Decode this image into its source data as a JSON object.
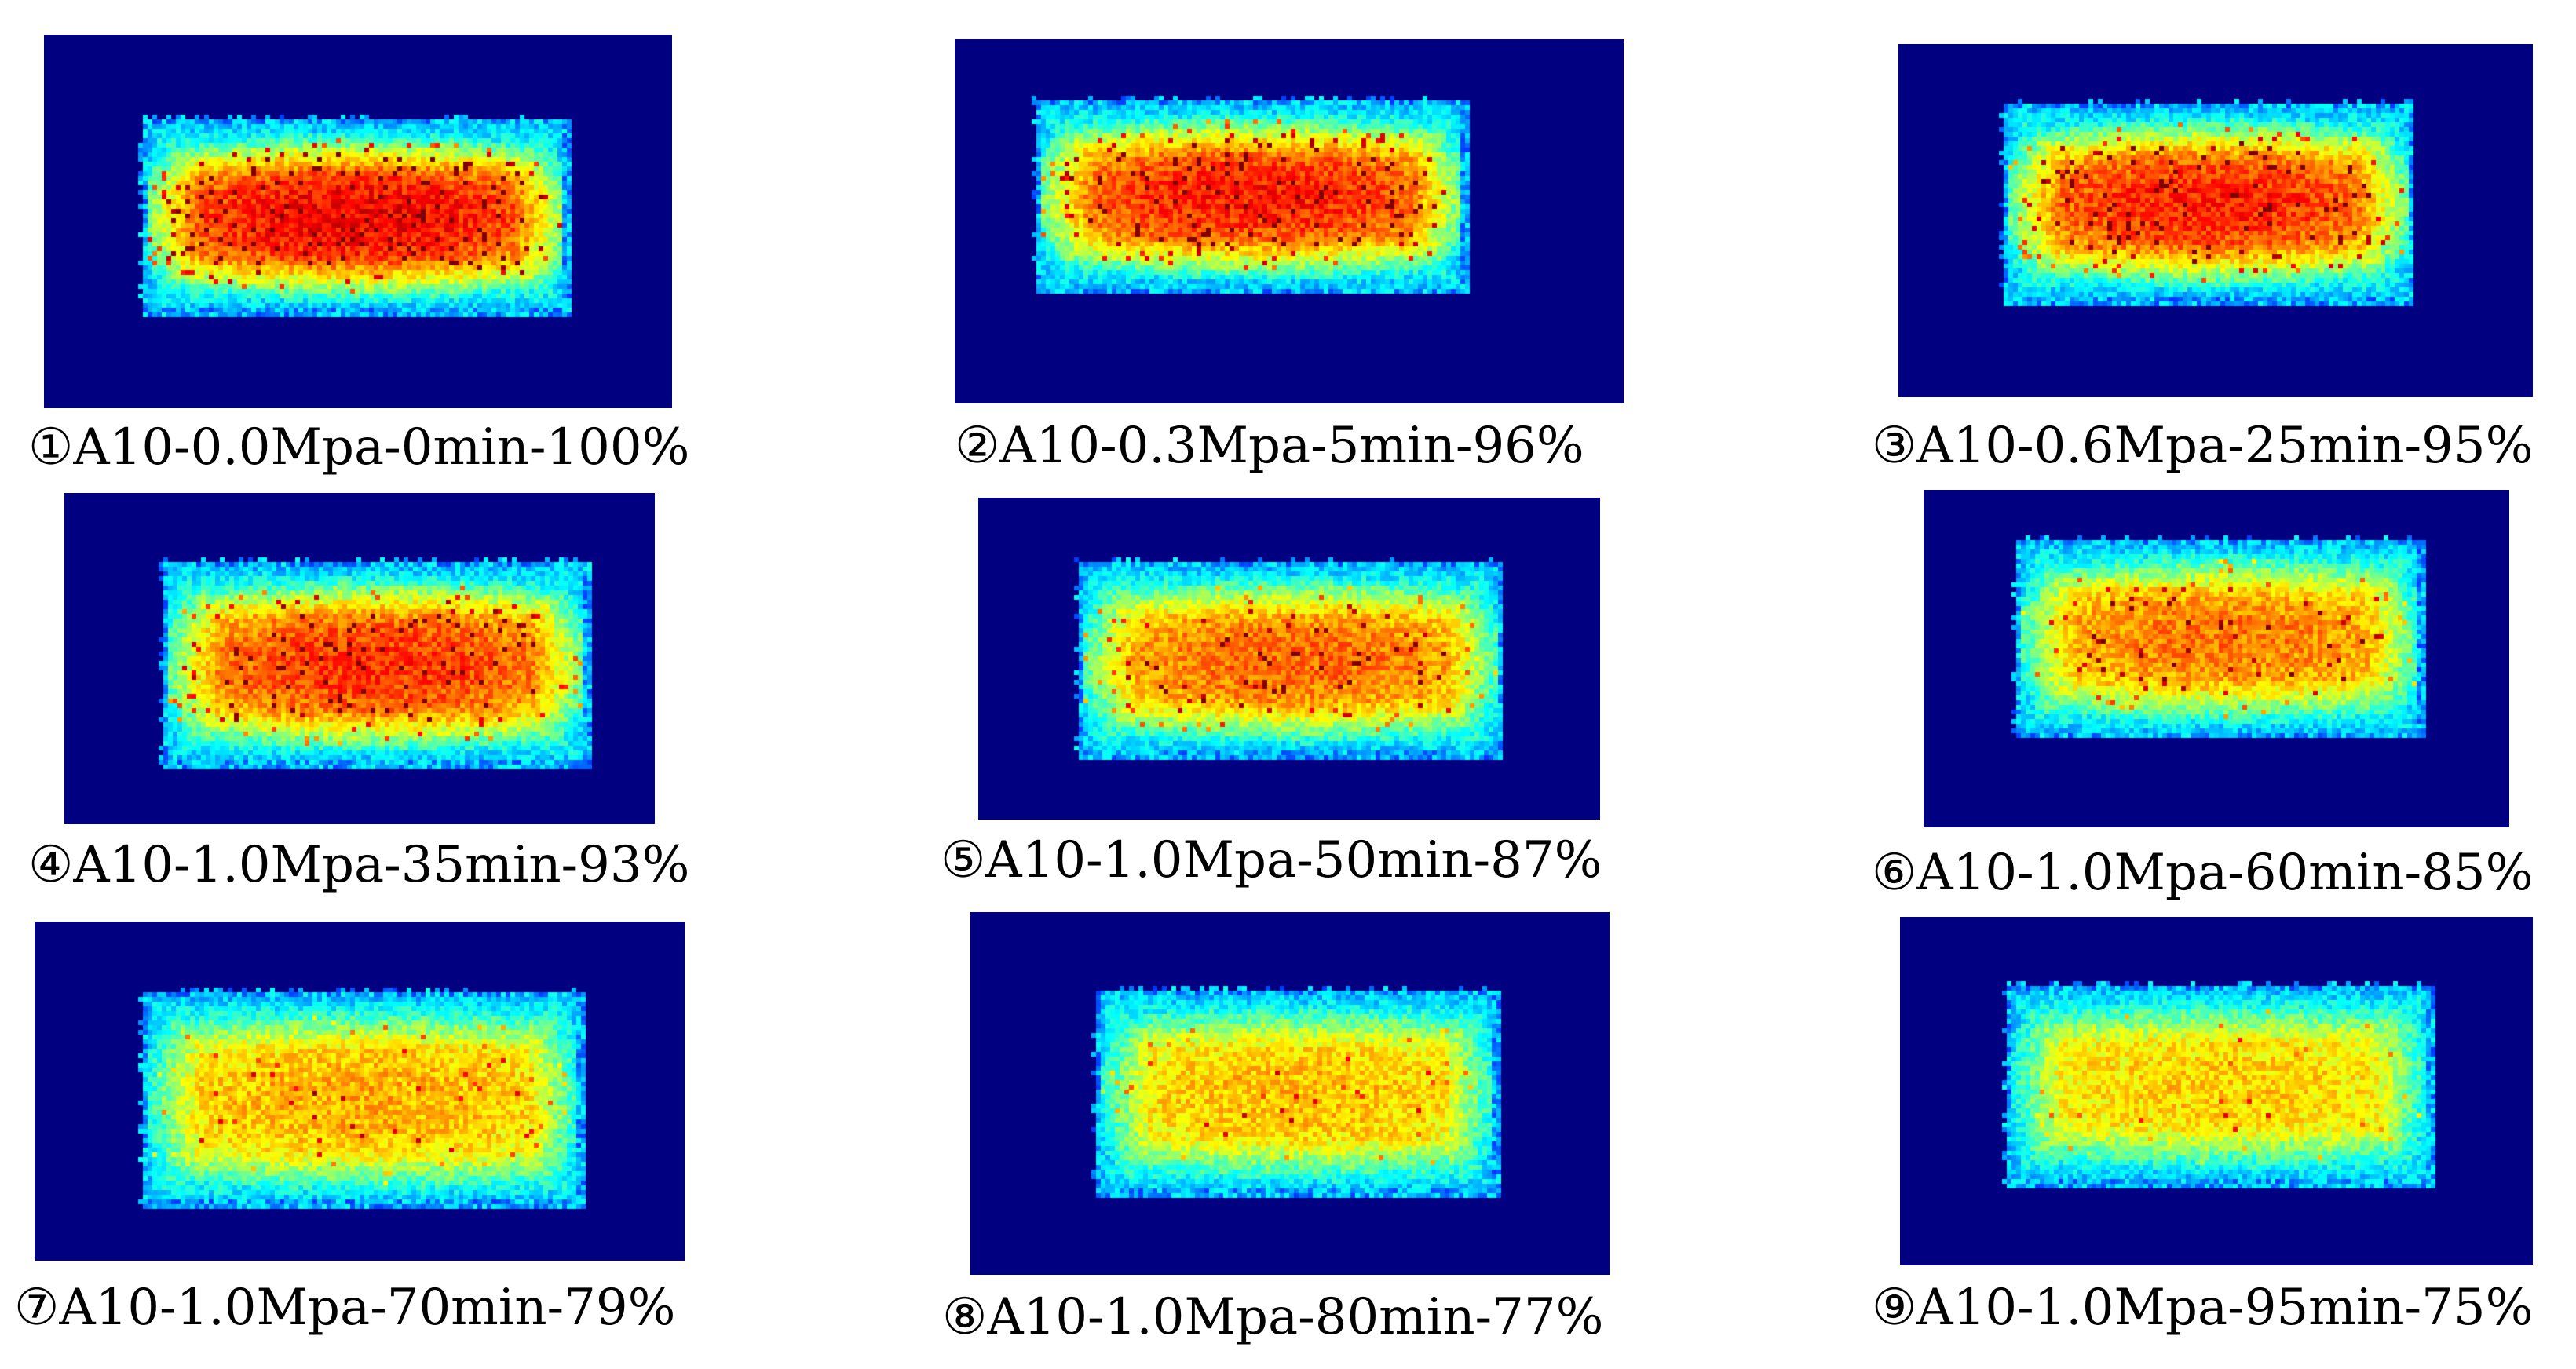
{
  "figure": {
    "panels": [
      {
        "caption": "①A10-0.0Mpa-0min-100%",
        "heat_level": 1.0
      },
      {
        "caption": "②A10-0.3Mpa-5min-96%",
        "heat_level": 0.96
      },
      {
        "caption": "③A10-0.6Mpa-25min-95%",
        "heat_level": 0.95
      },
      {
        "caption": "④A10-1.0Mpa-35min-93%",
        "heat_level": 0.93
      },
      {
        "caption": "⑤A10-1.0Mpa-50min-87%",
        "heat_level": 0.87
      },
      {
        "caption": "⑥A10-1.0Mpa-60min-85%",
        "heat_level": 0.85
      },
      {
        "caption": "⑦A10-1.0Mpa-70min-79%",
        "heat_level": 0.79
      },
      {
        "caption": "⑧A10-1.0Mpa-80min-77%",
        "heat_level": 0.77
      },
      {
        "caption": "⑨A10-1.0Mpa-95min-75%",
        "heat_level": 0.75
      }
    ],
    "colors": {
      "background": "#000080",
      "colormap": "jet"
    }
  }
}
